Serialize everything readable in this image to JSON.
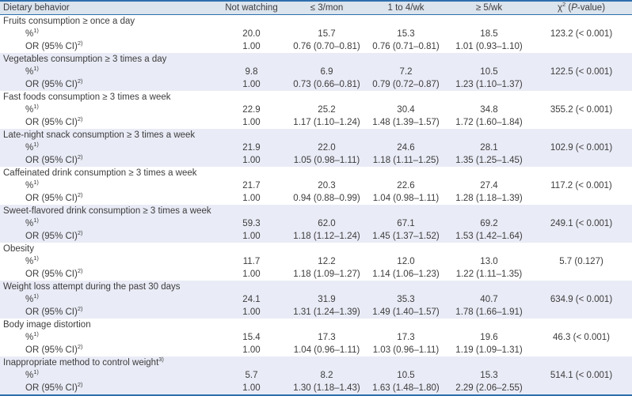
{
  "table": {
    "header": {
      "col0": "Dietary behavior",
      "col1": "Not watching",
      "col2": "≤ 3/mon",
      "col3": "1 to 4/wk",
      "col4": "≥ 5/wk",
      "col5": {
        "chi": "χ",
        "sup": "2",
        "mid": " (",
        "p": "P",
        "tail": "-value)"
      }
    },
    "row_labels": {
      "pct": "%",
      "pct_sup": "1)",
      "or": "OR (95% CI)",
      "or_sup": "2)"
    },
    "colors": {
      "border_blue": "#2e6fad",
      "header_bg": "#dce4ee",
      "shaded_row_bg": "#e9ebf6",
      "text": "#3d3d3d"
    },
    "groups": [
      {
        "label": "Fruits consumption ≥ once a day",
        "sup": "",
        "shaded": false,
        "pct": [
          "20.0",
          "15.7",
          "15.3",
          "18.5"
        ],
        "chi": "123.2 (< 0.001)",
        "or": [
          "1.00",
          "0.76 (0.70–0.81)",
          "0.76 (0.71–0.81)",
          "1.01 (0.93–1.10)"
        ]
      },
      {
        "label": "Vegetables consumption ≥ 3 times a day",
        "sup": "",
        "shaded": true,
        "pct": [
          "9.8",
          "6.9",
          "7.2",
          "10.5"
        ],
        "chi": "122.5 (< 0.001)",
        "or": [
          "1.00",
          "0.73 (0.66–0.81)",
          "0.79 (0.72–0.87)",
          "1.23 (1.10–1.37)"
        ]
      },
      {
        "label": "Fast foods consumption ≥ 3 times a week",
        "sup": "",
        "shaded": false,
        "pct": [
          "22.9",
          "25.2",
          "30.4",
          "34.8"
        ],
        "chi": "355.2 (< 0.001)",
        "or": [
          "1.00",
          "1.17 (1.10–1.24)",
          "1.48 (1.39–1.57)",
          "1.72 (1.60–1.84)"
        ]
      },
      {
        "label": "Late-night snack consumption ≥ 3 times a week",
        "sup": "",
        "shaded": true,
        "pct": [
          "21.9",
          "22.0",
          "24.6",
          "28.1"
        ],
        "chi": "102.9 (< 0.001)",
        "or": [
          "1.00",
          "1.05 (0.98–1.11)",
          "1.18 (1.11–1.25)",
          "1.35 (1.25–1.45)"
        ]
      },
      {
        "label": "Caffeinated drink consumption ≥ 3 times a week",
        "sup": "",
        "shaded": false,
        "pct": [
          "21.7",
          "20.3",
          "22.6",
          "27.4"
        ],
        "chi": "117.2 (< 0.001)",
        "or": [
          "1.00",
          "0.94 (0.88–0.99)",
          "1.04 (0.98–1.11)",
          "1.28 (1.18–1.39)"
        ]
      },
      {
        "label": "Sweet-flavored drink consumption ≥ 3 times a week",
        "sup": "",
        "shaded": true,
        "pct": [
          "59.3",
          "62.0",
          "67.1",
          "69.2"
        ],
        "chi": "249.1 (< 0.001)",
        "or": [
          "1.00",
          "1.18 (1.12–1.24)",
          "1.45 (1.37–1.52)",
          "1.53 (1.42–1.64)"
        ]
      },
      {
        "label": "Obesity",
        "sup": "",
        "shaded": false,
        "pct": [
          "11.7",
          "12.2",
          "12.0",
          "13.0"
        ],
        "chi": "5.7 (0.127)",
        "or": [
          "1.00",
          "1.18 (1.09–1.27)",
          "1.14 (1.06–1.23)",
          "1.22 (1.11–1.35)"
        ]
      },
      {
        "label": "Weight loss attempt during the past 30 days",
        "sup": "",
        "shaded": true,
        "pct": [
          "24.1",
          "31.9",
          "35.3",
          "40.7"
        ],
        "chi": "634.9 (< 0.001)",
        "or": [
          "1.00",
          "1.31 (1.24–1.39)",
          "1.49 (1.40–1.57)",
          "1.78 (1.66–1.91)"
        ]
      },
      {
        "label": "Body image distortion",
        "sup": "",
        "shaded": false,
        "pct": [
          "15.4",
          "17.3",
          "17.3",
          "19.6"
        ],
        "chi": "46.3 (< 0.001)",
        "or": [
          "1.00",
          "1.04 (0.96–1.11)",
          "1.03 (0.96–1.11)",
          "1.19 (1.09–1.31)"
        ]
      },
      {
        "label": "Inappropriate method to control weight",
        "sup": "3)",
        "shaded": true,
        "pct": [
          "5.7",
          "8.2",
          "10.5",
          "15.3"
        ],
        "chi": "514.1 (< 0.001)",
        "or": [
          "1.00",
          "1.30 (1.18–1.43)",
          "1.63 (1.48–1.80)",
          "2.29 (2.06–2.55)"
        ]
      }
    ]
  }
}
